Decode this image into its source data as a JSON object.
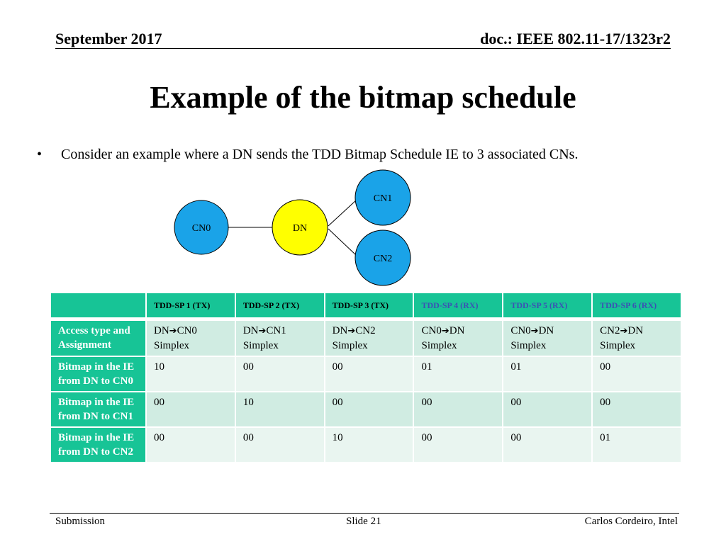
{
  "header": {
    "date": "September 2017",
    "doc_id": "doc.: IEEE 802.11-17/1323r2"
  },
  "title": "Example of the bitmap schedule",
  "bullet": "Consider an example where a DN sends the TDD Bitmap Schedule IE to 3 associated CNs.",
  "diagram": {
    "nodes": {
      "cn0": "CN0",
      "dn": "DN",
      "cn1": "CN1",
      "cn2": "CN2"
    },
    "colors": {
      "cn": "#1aa3e8",
      "dn": "#ffff00",
      "outline": "#000000"
    }
  },
  "table": {
    "columns": [
      "TDD-SP 1 (TX)",
      "TDD-SP 2 (TX)",
      "TDD-SP 3 (TX)",
      "TDD-SP 4 (RX)",
      "TDD-SP 5 (RX)",
      "TDD-SP 6 (RX)"
    ],
    "access": {
      "label": "Access type and Assignment",
      "cells": [
        {
          "from": "DN",
          "to": "CN0",
          "type": "Simplex"
        },
        {
          "from": "DN",
          "to": "CN1",
          "type": "Simplex"
        },
        {
          "from": "DN",
          "to": "CN2",
          "type": "Simplex"
        },
        {
          "from": "CN0",
          "to": "DN",
          "type": "Simplex"
        },
        {
          "from": "CN0",
          "to": "DN",
          "type": "Simplex"
        },
        {
          "from": "CN2",
          "to": "DN",
          "type": "Simplex"
        }
      ]
    },
    "bitmaps": [
      {
        "label": "Bitmap in the IE from DN to CN0",
        "values": [
          "10",
          "00",
          "00",
          "01",
          "01",
          "00"
        ]
      },
      {
        "label": "Bitmap in the IE from DN to CN1",
        "values": [
          "00",
          "10",
          "00",
          "00",
          "00",
          "00"
        ]
      },
      {
        "label": "Bitmap in the IE from DN to CN2",
        "values": [
          "00",
          "00",
          "10",
          "00",
          "00",
          "01"
        ]
      }
    ],
    "colors": {
      "header": "#17c496",
      "rx_header_text": "#3b52b4",
      "row_even": "#d0ece2",
      "row_odd": "#e9f5f0"
    }
  },
  "footer": {
    "left": "Submission",
    "center": "Slide 21",
    "right": "Carlos Cordeiro, Intel"
  }
}
